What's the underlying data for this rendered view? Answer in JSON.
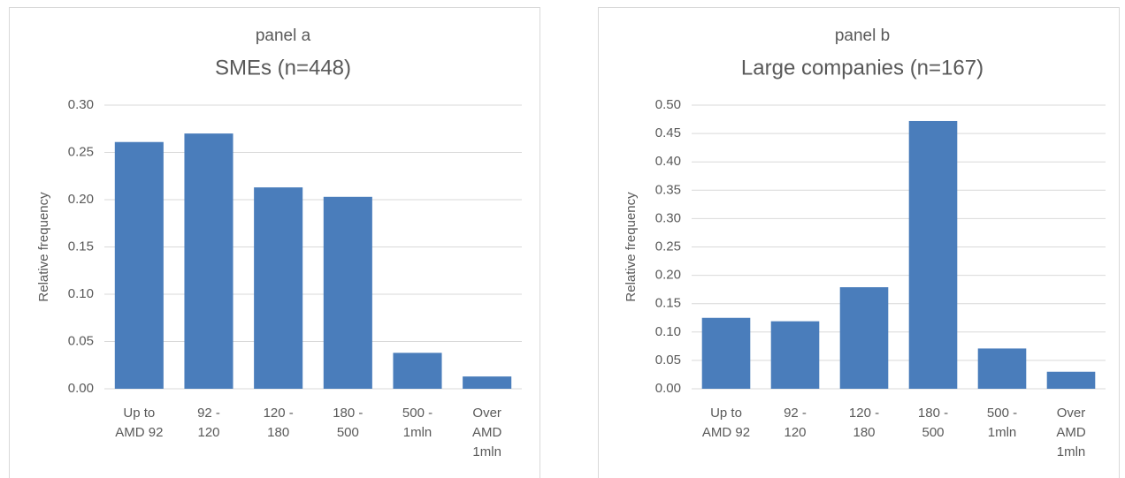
{
  "chart_data": [
    {
      "type": "bar",
      "title": "panel a",
      "subtitle": "SMEs (n=448)",
      "y_label": "Relative frequency",
      "categories": [
        [
          "Up to",
          "AMD 92"
        ],
        [
          "92 -",
          "120"
        ],
        [
          "120 -",
          "180"
        ],
        [
          "180 -",
          "500"
        ],
        [
          "500 -",
          "1mln"
        ],
        [
          "Over",
          "AMD",
          "1mln"
        ]
      ],
      "values": [
        0.261,
        0.27,
        0.213,
        0.203,
        0.038,
        0.013
      ],
      "color": "#4a7dbb",
      "ylim": [
        0,
        0.3
      ],
      "yticks": [
        {
          "value": 0,
          "label": "0.00"
        },
        {
          "value": 0.05,
          "label": "0.05"
        },
        {
          "value": 0.1,
          "label": "0.10"
        },
        {
          "value": 0.15,
          "label": "0.15"
        },
        {
          "value": 0.2,
          "label": "0.20"
        },
        {
          "value": 0.25,
          "label": "0.25"
        },
        {
          "value": 0.3,
          "label": "0.30"
        }
      ],
      "grid": true
    },
    {
      "type": "bar",
      "title": "panel b",
      "subtitle": "Large companies (n=167)",
      "y_label": "Relative frequency",
      "categories": [
        [
          "Up to",
          "AMD 92"
        ],
        [
          "92 -",
          "120"
        ],
        [
          "120 -",
          "180"
        ],
        [
          "180 -",
          "500"
        ],
        [
          "500 -",
          "1mln"
        ],
        [
          "Over",
          "AMD",
          "1mln"
        ]
      ],
      "values": [
        0.125,
        0.119,
        0.179,
        0.472,
        0.071,
        0.03
      ],
      "color": "#4a7dbb",
      "ylim": [
        0,
        0.5
      ],
      "yticks": [
        {
          "value": 0,
          "label": "0.00"
        },
        {
          "value": 0.05,
          "label": "0.05"
        },
        {
          "value": 0.1,
          "label": "0.10"
        },
        {
          "value": 0.15,
          "label": "0.15"
        },
        {
          "value": 0.2,
          "label": "0.20"
        },
        {
          "value": 0.25,
          "label": "0.25"
        },
        {
          "value": 0.3,
          "label": "0.30"
        },
        {
          "value": 0.35,
          "label": "0.35"
        },
        {
          "value": 0.4,
          "label": "0.40"
        },
        {
          "value": 0.45,
          "label": "0.45"
        },
        {
          "value": 0.5,
          "label": "0.50"
        }
      ],
      "grid": true
    }
  ]
}
